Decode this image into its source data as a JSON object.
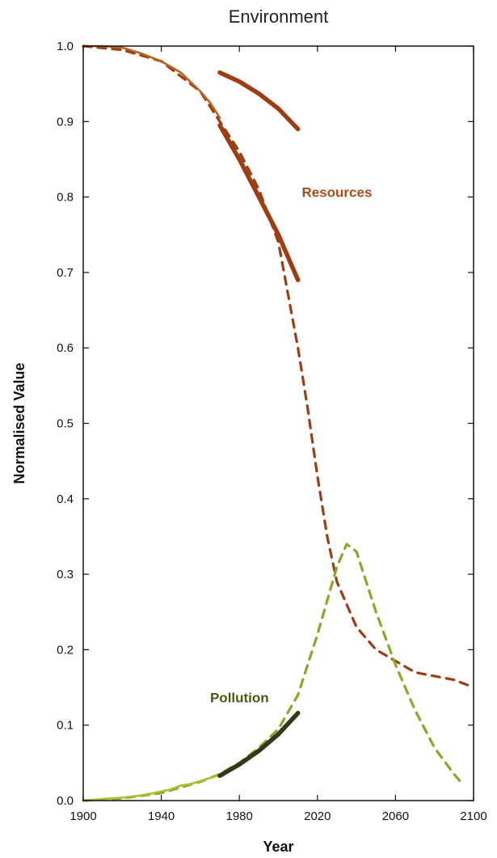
{
  "chart_data": {
    "type": "line",
    "title": "Environment",
    "xlabel": "Year",
    "ylabel": "Normalised Value",
    "xlim": [
      1900,
      2100
    ],
    "ylim": [
      0,
      1.0
    ],
    "xticks": [
      1900,
      1940,
      1980,
      2020,
      2060,
      2100
    ],
    "yticks": [
      "0.0",
      "0.1",
      "0.2",
      "0.3",
      "0.4",
      "0.5",
      "0.6",
      "0.7",
      "0.8",
      "0.9",
      "1.0"
    ],
    "grid": false,
    "series": [
      {
        "name": "Resources",
        "color": "#a03c10",
        "style": "dashed",
        "label_position": [
          1995,
          0.8
        ],
        "x": [
          1900,
          1920,
          1940,
          1960,
          1970,
          1980,
          1990,
          2000,
          2005,
          2010,
          2015,
          2020,
          2025,
          2030,
          2040,
          2050,
          2060,
          2070,
          2080,
          2090,
          2100
        ],
        "y": [
          1.0,
          0.995,
          0.98,
          0.94,
          0.9,
          0.86,
          0.81,
          0.74,
          0.67,
          0.6,
          0.52,
          0.43,
          0.35,
          0.29,
          0.23,
          0.2,
          0.185,
          0.17,
          0.165,
          0.16,
          0.15
        ]
      },
      {
        "name": "",
        "color": "#b8641e",
        "style": "solid-thin",
        "x": [
          1900,
          1910,
          1920,
          1930,
          1940,
          1950,
          1960,
          1965,
          1970
        ],
        "y": [
          1.0,
          1.0,
          0.998,
          0.99,
          0.98,
          0.965,
          0.94,
          0.925,
          0.905
        ]
      },
      {
        "name": "",
        "color": "#a03c10",
        "style": "solid-thick",
        "x": [
          1970,
          1980,
          1990,
          2000,
          2010
        ],
        "y": [
          0.965,
          0.953,
          0.937,
          0.917,
          0.89
        ]
      },
      {
        "name": "",
        "color": "#a03c10",
        "style": "solid-thick",
        "x": [
          1970,
          1980,
          1990,
          2000,
          2010
        ],
        "y": [
          0.895,
          0.85,
          0.8,
          0.75,
          0.69
        ]
      },
      {
        "name": "Pollution",
        "color": "#8aa828",
        "style": "dashed",
        "label_position": [
          1960,
          0.13
        ],
        "x": [
          1900,
          1920,
          1940,
          1960,
          1970,
          1980,
          1990,
          2000,
          2010,
          2020,
          2030,
          2035,
          2040,
          2050,
          2060,
          2070,
          2080,
          2090,
          2095
        ],
        "y": [
          0.0,
          0.003,
          0.01,
          0.025,
          0.035,
          0.05,
          0.07,
          0.095,
          0.14,
          0.22,
          0.31,
          0.34,
          0.33,
          0.25,
          0.18,
          0.12,
          0.07,
          0.035,
          0.02
        ]
      },
      {
        "name": "",
        "color": "#a8c030",
        "style": "solid-thin",
        "x": [
          1900,
          1910,
          1920,
          1930,
          1940,
          1945,
          1950,
          1955,
          1960,
          1970
        ],
        "y": [
          0.0,
          0.002,
          0.004,
          0.007,
          0.012,
          0.015,
          0.02,
          0.022,
          0.026,
          0.034
        ]
      },
      {
        "name": "",
        "color": "#2e3a18",
        "style": "solid-thick",
        "x": [
          1970,
          1980,
          1990,
          2000,
          2010
        ],
        "y": [
          0.033,
          0.048,
          0.066,
          0.088,
          0.116
        ]
      }
    ],
    "annotations": [
      {
        "text": "Resources",
        "color": "#b04a18",
        "x": 2012,
        "y": 0.8
      },
      {
        "text": "Pollution",
        "color": "#4a5a14",
        "x": 1965,
        "y": 0.13
      }
    ]
  }
}
